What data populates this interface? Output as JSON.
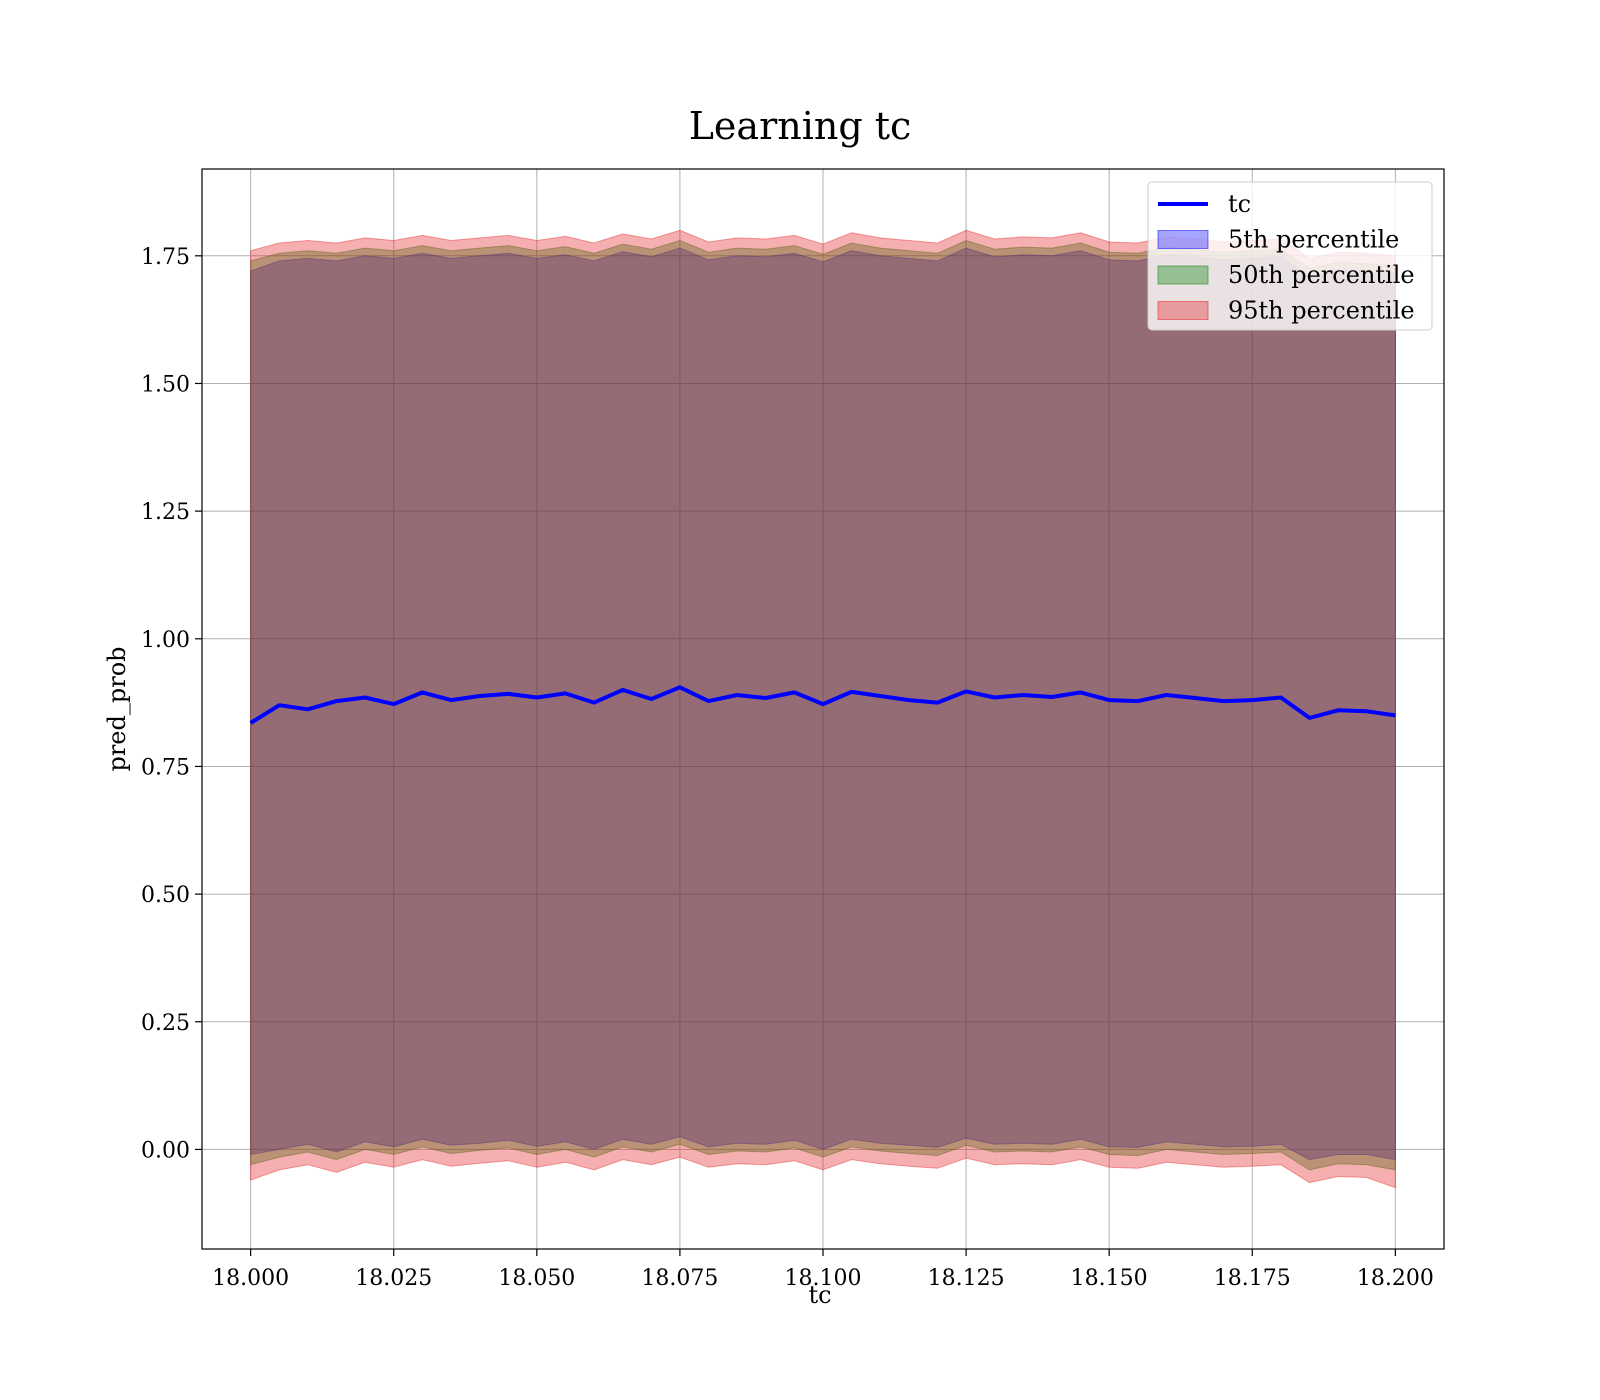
{
  "chart_data": {
    "type": "line",
    "title": "Learning tc",
    "xlabel": "tc",
    "ylabel": "pred_prob",
    "xlim": [
      17.9915,
      18.2085
    ],
    "ylim": [
      -0.195,
      1.92
    ],
    "xticks": [
      18.0,
      18.025,
      18.05,
      18.075,
      18.1,
      18.125,
      18.15,
      18.175,
      18.2
    ],
    "xtick_labels": [
      "18.000",
      "18.025",
      "18.050",
      "18.075",
      "18.100",
      "18.125",
      "18.150",
      "18.175",
      "18.200"
    ],
    "yticks": [
      0.0,
      0.25,
      0.5,
      0.75,
      1.0,
      1.25,
      1.5,
      1.75
    ],
    "ytick_labels": [
      "0.00",
      "0.25",
      "0.50",
      "0.75",
      "1.00",
      "1.25",
      "1.50",
      "1.75"
    ],
    "grid": true,
    "legend_position": "upper right",
    "x": [
      18.0,
      18.005,
      18.01,
      18.015,
      18.02,
      18.025,
      18.03,
      18.035,
      18.04,
      18.045,
      18.05,
      18.055,
      18.06,
      18.065,
      18.07,
      18.075,
      18.08,
      18.085,
      18.09,
      18.095,
      18.1,
      18.105,
      18.11,
      18.115,
      18.12,
      18.125,
      18.13,
      18.135,
      18.14,
      18.145,
      18.15,
      18.155,
      18.16,
      18.165,
      18.17,
      18.175,
      18.18,
      18.185,
      18.19,
      18.195,
      18.2
    ],
    "series": [
      {
        "name": "tc",
        "kind": "line",
        "color": "#0000ff",
        "values": [
          0.835,
          0.87,
          0.862,
          0.878,
          0.885,
          0.872,
          0.895,
          0.88,
          0.888,
          0.892,
          0.885,
          0.893,
          0.875,
          0.9,
          0.882,
          0.905,
          0.878,
          0.89,
          0.884,
          0.895,
          0.872,
          0.896,
          0.888,
          0.88,
          0.875,
          0.897,
          0.885,
          0.89,
          0.886,
          0.895,
          0.88,
          0.878,
          0.89,
          0.884,
          0.878,
          0.88,
          0.885,
          0.845,
          0.86,
          0.858,
          0.85
        ]
      },
      {
        "name": "5th percentile",
        "kind": "band",
        "color": "#0000ff",
        "lower": [
          -0.01,
          0.0,
          0.01,
          -0.005,
          0.015,
          0.005,
          0.02,
          0.008,
          0.012,
          0.018,
          0.006,
          0.015,
          0.0,
          0.02,
          0.01,
          0.025,
          0.005,
          0.012,
          0.01,
          0.018,
          0.0,
          0.02,
          0.012,
          0.008,
          0.004,
          0.022,
          0.01,
          0.012,
          0.01,
          0.02,
          0.005,
          0.004,
          0.015,
          0.01,
          0.005,
          0.006,
          0.01,
          -0.02,
          -0.01,
          -0.01,
          -0.02
        ],
        "upper": [
          1.72,
          1.74,
          1.745,
          1.74,
          1.75,
          1.745,
          1.755,
          1.745,
          1.75,
          1.755,
          1.745,
          1.752,
          1.74,
          1.758,
          1.748,
          1.765,
          1.742,
          1.75,
          1.748,
          1.755,
          1.738,
          1.76,
          1.75,
          1.745,
          1.74,
          1.765,
          1.748,
          1.752,
          1.75,
          1.76,
          1.742,
          1.74,
          1.752,
          1.748,
          1.742,
          1.745,
          1.748,
          1.71,
          1.722,
          1.72,
          1.715
        ]
      },
      {
        "name": "50th percentile",
        "kind": "band",
        "color": "#008000",
        "lower": [
          -0.03,
          -0.015,
          -0.005,
          -0.02,
          0.0,
          -0.01,
          0.005,
          -0.008,
          -0.002,
          0.003,
          -0.01,
          0.0,
          -0.015,
          0.005,
          -0.005,
          0.01,
          -0.01,
          -0.003,
          -0.005,
          0.003,
          -0.015,
          0.005,
          -0.003,
          -0.008,
          -0.012,
          0.008,
          -0.005,
          -0.003,
          -0.005,
          0.005,
          -0.01,
          -0.012,
          0.0,
          -0.005,
          -0.01,
          -0.008,
          -0.005,
          -0.04,
          -0.028,
          -0.03,
          -0.04
        ],
        "upper": [
          1.74,
          1.755,
          1.76,
          1.755,
          1.765,
          1.76,
          1.77,
          1.76,
          1.765,
          1.77,
          1.76,
          1.768,
          1.755,
          1.773,
          1.763,
          1.78,
          1.757,
          1.765,
          1.763,
          1.77,
          1.753,
          1.775,
          1.765,
          1.76,
          1.755,
          1.78,
          1.763,
          1.767,
          1.765,
          1.775,
          1.757,
          1.755,
          1.767,
          1.763,
          1.757,
          1.76,
          1.763,
          1.725,
          1.737,
          1.735,
          1.73
        ]
      },
      {
        "name": "95th percentile",
        "kind": "band",
        "color": "#e31a1c",
        "lower": [
          -0.06,
          -0.04,
          -0.03,
          -0.045,
          -0.025,
          -0.035,
          -0.02,
          -0.033,
          -0.027,
          -0.022,
          -0.035,
          -0.025,
          -0.04,
          -0.02,
          -0.03,
          -0.015,
          -0.035,
          -0.028,
          -0.03,
          -0.022,
          -0.04,
          -0.02,
          -0.028,
          -0.033,
          -0.037,
          -0.017,
          -0.03,
          -0.028,
          -0.03,
          -0.02,
          -0.035,
          -0.037,
          -0.025,
          -0.03,
          -0.035,
          -0.033,
          -0.03,
          -0.065,
          -0.053,
          -0.055,
          -0.075
        ],
        "upper": [
          1.76,
          1.775,
          1.78,
          1.775,
          1.785,
          1.78,
          1.79,
          1.78,
          1.785,
          1.79,
          1.78,
          1.788,
          1.775,
          1.793,
          1.783,
          1.8,
          1.777,
          1.785,
          1.783,
          1.79,
          1.773,
          1.795,
          1.785,
          1.78,
          1.775,
          1.8,
          1.783,
          1.787,
          1.785,
          1.795,
          1.777,
          1.775,
          1.787,
          1.783,
          1.777,
          1.78,
          1.783,
          1.745,
          1.757,
          1.755,
          1.75
        ]
      }
    ]
  }
}
